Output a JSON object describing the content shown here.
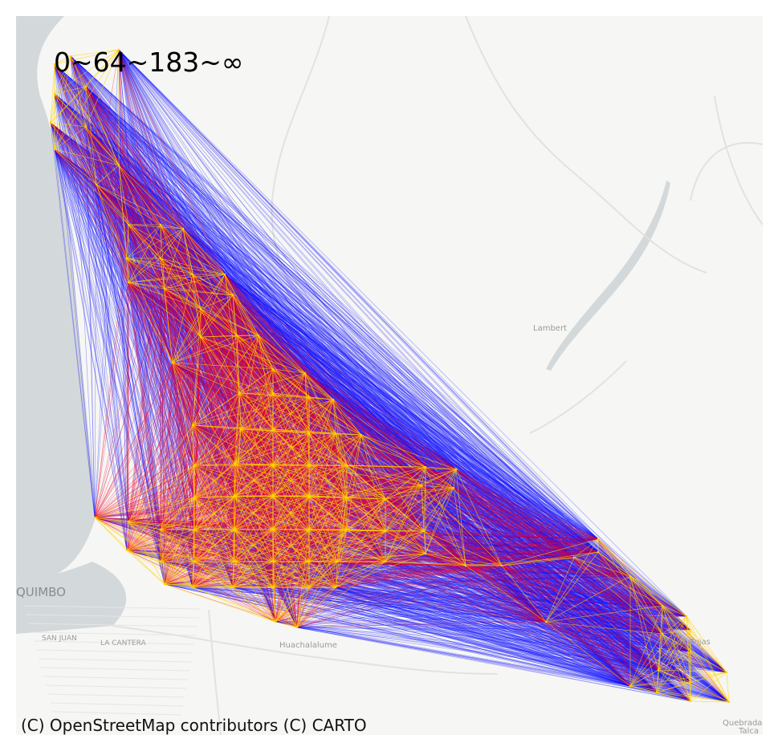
{
  "map": {
    "title": "0~64~183~∞",
    "attribution": "(C) OpenStreetMap contributors (C) CARTO",
    "place_labels": [
      {
        "name": "QUIMBO",
        "size": "large"
      },
      {
        "name": "SAN JUAN",
        "size": "small"
      },
      {
        "name": "LA CANTERA",
        "size": "small"
      },
      {
        "name": "Huachalalume",
        "size": "small"
      },
      {
        "name": "Lambert",
        "size": "small"
      },
      {
        "name": "Las Rojas",
        "size": "small"
      },
      {
        "name": "Quebrada",
        "size": "small"
      },
      {
        "name": "Talca",
        "size": "small"
      }
    ],
    "legend_bins": [
      "0",
      "64",
      "183",
      "∞"
    ],
    "colors": {
      "short_flows": "#ffd400",
      "medium_flows": "#e8002a",
      "long_flows": "#1010ff",
      "water": "#d3d8da",
      "land": "#f6f6f4",
      "roads": "#e2e2e2"
    }
  }
}
